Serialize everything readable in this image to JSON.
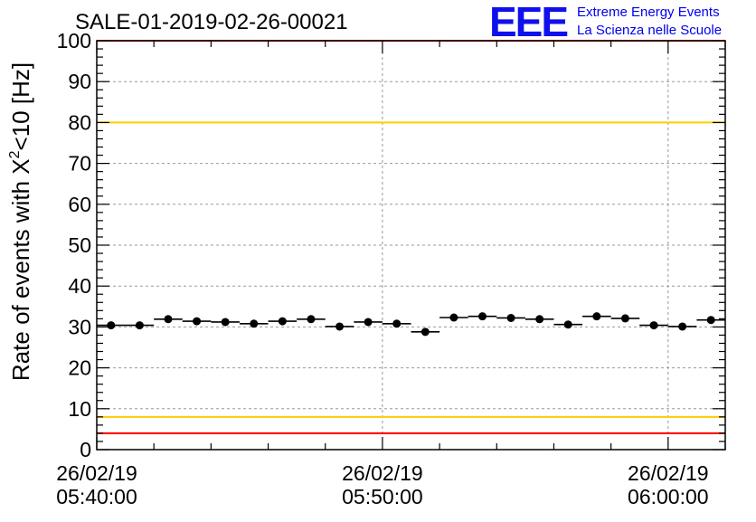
{
  "chart_data": {
    "type": "scatter",
    "title": "SALE-01-2019-02-26-00021",
    "ylabel_main": "Rate of events with X",
    "ylabel_sup": "2",
    "ylabel_tail": "<10 [Hz]",
    "xlabel": "",
    "ylim": [
      0,
      100
    ],
    "yticks": [
      "0",
      "10",
      "20",
      "30",
      "40",
      "50",
      "60",
      "70",
      "80",
      "90",
      "100"
    ],
    "xlim_minutes": [
      0,
      22
    ],
    "xticks": [
      {
        "minute": 0,
        "date": "26/02/19",
        "time": "05:40:00"
      },
      {
        "minute": 10,
        "date": "26/02/19",
        "time": "05:50:00"
      },
      {
        "minute": 20,
        "date": "26/02/19",
        "time": "06:00:00"
      }
    ],
    "grid": true,
    "series": [
      {
        "x_minutes": [
          0.5,
          1.5,
          2.5,
          3.5,
          4.5,
          5.5,
          6.5,
          7.5,
          8.5,
          9.5,
          10.5,
          11.5,
          12.5,
          13.5,
          14.5,
          15.5,
          16.5,
          17.5,
          18.5,
          19.5,
          20.5,
          21.5
        ],
        "values": [
          30.4,
          30.4,
          31.9,
          31.4,
          31.2,
          30.8,
          31.4,
          31.9,
          30.1,
          31.2,
          30.8,
          28.8,
          32.3,
          32.6,
          32.2,
          31.9,
          30.6,
          32.6,
          32.1,
          30.4,
          30.1,
          31.7
        ],
        "bin_half_width_minutes": 0.5
      }
    ],
    "reference_lines": [
      {
        "value": 100,
        "color": "#ff0000"
      },
      {
        "value": 80,
        "color": "#ffcc00"
      },
      {
        "value": 8,
        "color": "#ffcc00"
      },
      {
        "value": 4,
        "color": "#ff0000"
      }
    ]
  },
  "logo": {
    "text": "EEE",
    "line1": "Extreme Energy Events",
    "line2": "La Scienza nelle Scuole",
    "color": "#0000ee"
  },
  "colors": {
    "marker": "#000000",
    "grid": "#999999",
    "frame": "#000000"
  }
}
